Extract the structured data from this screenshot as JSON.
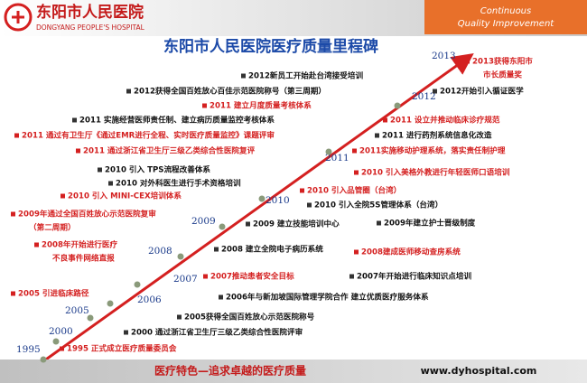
{
  "header": {
    "hospital_name": "东阳市人民医院",
    "hospital_name_en": "DONGYANG PEOPLE'S HOSPITAL",
    "slogan": [
      "Continuous",
      "Quality Improvement"
    ]
  },
  "title": "东阳市人民医院医疗质量里程碑",
  "years": [
    "1995",
    "2000",
    "2005",
    "2006",
    "2007",
    "2008",
    "2009",
    "2010",
    "2011",
    "2012",
    "2013"
  ],
  "events": [
    {
      "lines": [
        "2012新员工开始赴台湾接受培训"
      ]
    },
    {
      "lines": [
        "2012获得全国百姓放心百佳示范医院称号（第三周期）"
      ]
    },
    {
      "lines": [
        "2011 建立月度质量考核体系"
      ]
    },
    {
      "lines": [
        "2011 实施经营医师责任制、建立病历质量监控考核体系"
      ]
    },
    {
      "lines": [
        "2011 通过有卫生厅《通过EMR进行全程、实时医疗质量监控》课题评审"
      ]
    },
    {
      "lines": [
        "2011 通过浙江省卫生厅三级乙类综合性医院复评"
      ]
    },
    {
      "lines": [
        "2010 引入 TPS流程改善体系"
      ]
    },
    {
      "lines": [
        "2010 对外科医生进行手术资格培训"
      ]
    },
    {
      "lines": [
        "2010 引入 MINI-CEX培训体系"
      ]
    },
    {
      "lines": [
        "2009年通过全国百姓放心示范医院复审",
        "（第二周期）"
      ]
    },
    {
      "lines": [
        "2008年开始进行医疗",
        "不良事件网络直报"
      ]
    },
    {
      "lines": [
        "2005 引进临床路径"
      ]
    },
    {
      "lines": [
        "1995 正式成立医疗质量委员会"
      ]
    },
    {
      "lines": [
        "2000 通过浙江省卫生厅三级乙类综合性医院评审"
      ]
    },
    {
      "lines": [
        "2005获得全国百姓放心示范医院称号"
      ]
    },
    {
      "lines": [
        "2006年与新加坡国际管理学院合作 建立优质医疗服务体系"
      ]
    },
    {
      "lines": [
        "2007推动患者安全目标"
      ]
    },
    {
      "lines": [
        "2007年开始进行临床知识点培训"
      ]
    },
    {
      "lines": [
        "2008 建立全院电子病历系统"
      ]
    },
    {
      "lines": [
        "2008建成医师移动查房系统"
      ]
    },
    {
      "lines": [
        "2009 建立技能培训中心"
      ]
    },
    {
      "lines": [
        "2009年建立护士晋级制度"
      ]
    },
    {
      "lines": [
        "2010 引入全院5S管理体系（台湾）"
      ]
    },
    {
      "lines": [
        "2010 引入品管圈（台湾）"
      ]
    },
    {
      "lines": [
        "2010 引入美格外教进行年轻医师口语培训"
      ]
    },
    {
      "lines": [
        "2011实施移动护理系统，落实责任制护理"
      ]
    },
    {
      "lines": [
        "2011 进行药剂系统信息化改造"
      ]
    },
    {
      "lines": [
        "2011 设立并推动临床诊疗规范"
      ]
    },
    {
      "lines": [
        "2012开始引入循证医学"
      ]
    },
    {
      "lines": [
        "2013获得东阳市",
        "市长质量奖"
      ]
    }
  ],
  "footer": {
    "motto": "医疗特色—追求卓越的医疗质量",
    "url": "www.dyhospital.com"
  }
}
